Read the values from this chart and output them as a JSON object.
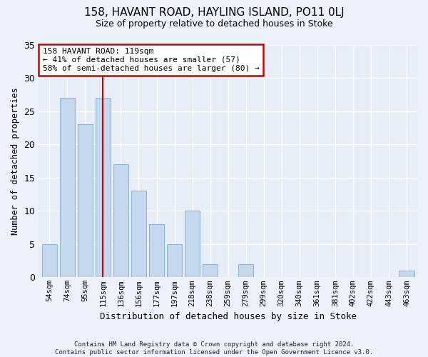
{
  "title": "158, HAVANT ROAD, HAYLING ISLAND, PO11 0LJ",
  "subtitle": "Size of property relative to detached houses in Stoke",
  "xlabel": "Distribution of detached houses by size in Stoke",
  "ylabel": "Number of detached properties",
  "categories": [
    "54sqm",
    "74sqm",
    "95sqm",
    "115sqm",
    "136sqm",
    "156sqm",
    "177sqm",
    "197sqm",
    "218sqm",
    "238sqm",
    "259sqm",
    "279sqm",
    "299sqm",
    "320sqm",
    "340sqm",
    "361sqm",
    "381sqm",
    "402sqm",
    "422sqm",
    "443sqm",
    "463sqm"
  ],
  "values": [
    5,
    27,
    23,
    27,
    17,
    13,
    8,
    5,
    10,
    2,
    0,
    2,
    0,
    0,
    0,
    0,
    0,
    0,
    0,
    0,
    1
  ],
  "bar_color": "#c5d8ed",
  "bar_edgecolor": "#8fb8d8",
  "vline_x_index": 3,
  "vline_color": "#cc0000",
  "annotation_line1": "158 HAVANT ROAD: 119sqm",
  "annotation_line2": "← 41% of detached houses are smaller (57)",
  "annotation_line3": "58% of semi-detached houses are larger (80) →",
  "annotation_box_color": "#ffffff",
  "annotation_box_edgecolor": "#cc0000",
  "ylim": [
    0,
    35
  ],
  "yticks": [
    0,
    5,
    10,
    15,
    20,
    25,
    30,
    35
  ],
  "background_color": "#e8eef8",
  "grid_color": "#ffffff",
  "fig_background_color": "#edf2fa",
  "footer": "Contains HM Land Registry data © Crown copyright and database right 2024.\nContains public sector information licensed under the Open Government Licence v3.0."
}
